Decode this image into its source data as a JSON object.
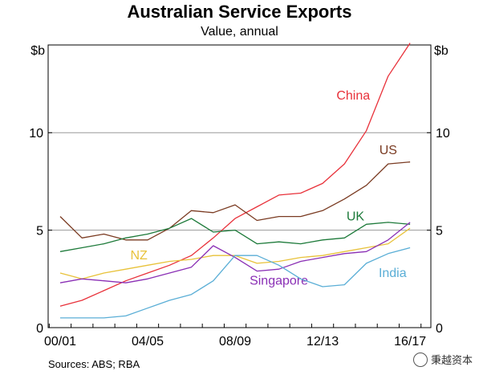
{
  "chart_data": {
    "type": "line",
    "title": "Australian Service Exports",
    "subtitle": "Value, annual",
    "y_unit_left": "$b",
    "y_unit_right": "$b",
    "ylim": [
      0,
      14.5
    ],
    "yticks": [
      0,
      5,
      10
    ],
    "grid": "horizontal at 5 and 10",
    "x_tick_labels": [
      "00/01",
      "04/05",
      "08/09",
      "12/13",
      "16/17"
    ],
    "x_tick_index": [
      0,
      4,
      8,
      12,
      16
    ],
    "categories": [
      "00/01",
      "01/02",
      "02/03",
      "03/04",
      "04/05",
      "05/06",
      "06/07",
      "07/08",
      "08/09",
      "09/10",
      "10/11",
      "11/12",
      "12/13",
      "13/14",
      "14/15",
      "15/16",
      "16/17"
    ],
    "series": [
      {
        "name": "China",
        "color": "#e8313a",
        "label_index": 13.4,
        "label_value": 11.7,
        "values": [
          1.1,
          1.4,
          1.9,
          2.4,
          2.8,
          3.2,
          3.7,
          4.6,
          5.6,
          6.2,
          6.8,
          6.9,
          7.4,
          8.4,
          10.1,
          12.9,
          14.6
        ]
      },
      {
        "name": "US",
        "color": "#7a3b22",
        "label_index": 15.0,
        "label_value": 8.9,
        "values": [
          5.7,
          4.6,
          4.8,
          4.5,
          4.5,
          5.1,
          6.0,
          5.9,
          6.3,
          5.5,
          5.7,
          5.7,
          6.0,
          6.6,
          7.3,
          8.4,
          8.5
        ]
      },
      {
        "name": "UK",
        "color": "#1d7a3a",
        "label_index": 13.5,
        "label_value": 5.5,
        "values": [
          3.9,
          4.1,
          4.3,
          4.6,
          4.8,
          5.1,
          5.6,
          4.9,
          5.0,
          4.3,
          4.4,
          4.3,
          4.5,
          4.6,
          5.3,
          5.4,
          5.3
        ]
      },
      {
        "name": "NZ",
        "color": "#e8c23a",
        "label_index": 3.6,
        "label_value": 3.5,
        "values": [
          2.8,
          2.5,
          2.8,
          3.0,
          3.2,
          3.4,
          3.5,
          3.7,
          3.7,
          3.3,
          3.4,
          3.6,
          3.7,
          3.9,
          4.1,
          4.3,
          5.1
        ]
      },
      {
        "name": "Singapore",
        "color": "#8a2fb5",
        "label_index": 10.0,
        "label_value": 2.2,
        "values": [
          2.3,
          2.5,
          2.4,
          2.3,
          2.5,
          2.8,
          3.1,
          4.2,
          3.6,
          2.9,
          3.0,
          3.4,
          3.6,
          3.8,
          3.9,
          4.5,
          5.4
        ]
      },
      {
        "name": "India",
        "color": "#5aaed6",
        "label_index": 15.2,
        "label_value": 2.6,
        "values": [
          0.5,
          0.5,
          0.5,
          0.6,
          1.0,
          1.4,
          1.7,
          2.4,
          3.7,
          3.7,
          3.2,
          2.5,
          2.1,
          2.2,
          3.3,
          3.8,
          4.1
        ]
      }
    ]
  },
  "source_text": "Sources:   ABS; RBA",
  "watermark_text": "秉越资本",
  "watermark_icon": "circle-logo-icon"
}
